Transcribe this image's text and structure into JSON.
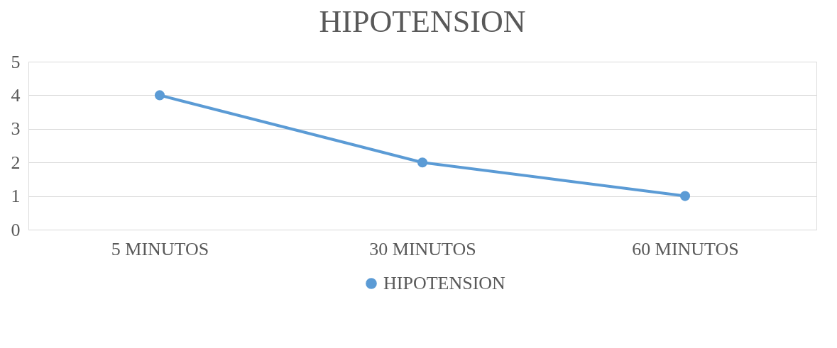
{
  "chart_data": {
    "type": "line",
    "title": "HIPOTENSION",
    "categories": [
      "5 MINUTOS",
      "30 MINUTOS",
      "60 MINUTOS"
    ],
    "series": [
      {
        "name": "HIPOTENSION",
        "color": "#5b9bd5",
        "values": [
          4,
          2,
          1
        ]
      }
    ],
    "ylim": [
      0,
      5
    ],
    "yticks": [
      0,
      1,
      2,
      3,
      4,
      5
    ],
    "grid": "y",
    "legend": "bottom",
    "marker": "circle",
    "line_style": "solid"
  }
}
